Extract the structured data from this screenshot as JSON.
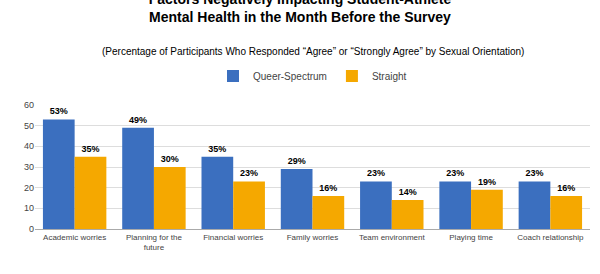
{
  "chart_data": {
    "type": "bar",
    "title": "Factors Negatively Impacting Student-Athlete\nMental Health in the Month Before the Survey",
    "subtitle": "(Percentage of Participants Who Responded “Agree” or “Strongly Agree” by Sexual Orientation)",
    "categories": [
      "Academic worries",
      "Planning for the\nfuture",
      "Financial worries",
      "Family worries",
      "Team environment",
      "Playing time",
      "Coach relationship"
    ],
    "series": [
      {
        "name": "Queer-Spectrum",
        "color": "#3B6FBF",
        "values": [
          53,
          49,
          35,
          29,
          23,
          23,
          23
        ],
        "value_labels": [
          "53%",
          "49%",
          "35%",
          "29%",
          "23%",
          "23%",
          "23%"
        ]
      },
      {
        "name": "Straight",
        "color": "#F5A800",
        "values": [
          35,
          30,
          23,
          16,
          14,
          19,
          16
        ],
        "value_labels": [
          "35%",
          "30%",
          "23%",
          "16%",
          "14%",
          "19%",
          "16%"
        ]
      }
    ],
    "ylim": [
      0,
      60
    ],
    "yticks": [
      0,
      10,
      20,
      30,
      40,
      50,
      60
    ],
    "grid": true,
    "legend": "top",
    "data_labels": true
  }
}
